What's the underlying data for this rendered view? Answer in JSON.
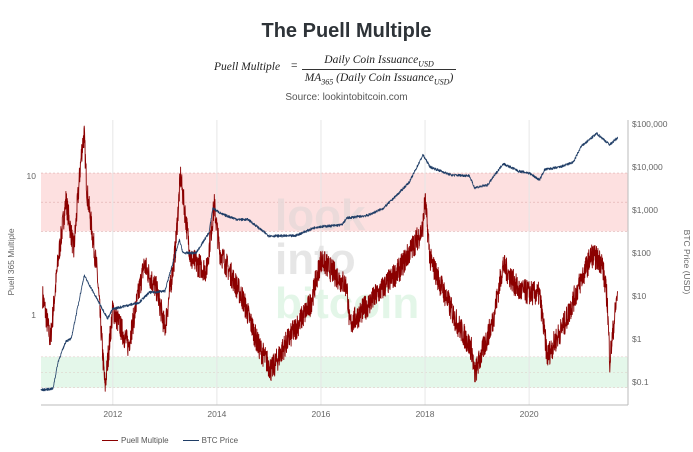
{
  "title": "The Puell Multiple",
  "formula": {
    "lhs": "Puell Multiple",
    "eq": "=",
    "numerator": "Daily Coin Issuance",
    "numerator_sub": "USD",
    "denominator_prefix": "MA",
    "denominator_prefix_sub": "365",
    "denominator": " (Daily Coin Issuance",
    "denominator_sub": "USD",
    "denominator_close": ")"
  },
  "source": "Source: lookintobitcoin.com",
  "watermark": [
    "look",
    "into",
    "bitcoin"
  ],
  "chart_data": {
    "type": "line",
    "title": "The Puell Multiple",
    "xlabel": "",
    "ylabel_left": "Puell 365 Multiple",
    "ylabel_right": "BTC Price (USD)",
    "xlim": [
      2010.62,
      2021.75
    ],
    "ylim_left": [
      0.22,
      26
    ],
    "ylim_right": [
      0.045,
      130000
    ],
    "x_ticks": [
      "2012",
      "2014",
      "2016",
      "2018",
      "2020"
    ],
    "x_tick_values": [
      2012,
      2014,
      2016,
      2018,
      2020
    ],
    "left_ticks": [
      "10",
      "1"
    ],
    "left_tick_values": [
      10,
      1
    ],
    "right_ticks": [
      "$100,000",
      "$10,000",
      "$1,000",
      "$100",
      "$10",
      "$1",
      "$0.1"
    ],
    "right_tick_values": [
      100000,
      10000,
      1000,
      100,
      10,
      1,
      0.1
    ],
    "bands": [
      {
        "name": "overvalued-zone",
        "from": 4,
        "to": 10.5,
        "color": "#fde0e0"
      },
      {
        "name": "undervalued-zone",
        "from": 0.3,
        "to": 0.5,
        "color": "#e4f7ea"
      }
    ],
    "grid": true,
    "legend_position": "bottom-left",
    "series": [
      {
        "name": "Puell Multiple",
        "axis": "left",
        "color": "#8b0000",
        "points": [
          [
            2010.65,
            1.37
          ],
          [
            2010.8,
            0.66
          ],
          [
            2010.95,
            2.5
          ],
          [
            2011.1,
            6.7
          ],
          [
            2011.25,
            2.9
          ],
          [
            2011.4,
            15
          ],
          [
            2011.45,
            20
          ],
          [
            2011.5,
            8
          ],
          [
            2011.7,
            2
          ],
          [
            2011.85,
            0.3
          ],
          [
            2012.0,
            1.1
          ],
          [
            2012.3,
            0.6
          ],
          [
            2012.6,
            2.3
          ],
          [
            2012.85,
            1.5
          ],
          [
            2013.0,
            0.8
          ],
          [
            2013.2,
            2.9
          ],
          [
            2013.3,
            10
          ],
          [
            2013.5,
            2.5
          ],
          [
            2013.8,
            2.1
          ],
          [
            2013.95,
            6.2
          ],
          [
            2014.05,
            2.9
          ],
          [
            2014.5,
            1.3
          ],
          [
            2014.8,
            0.6
          ],
          [
            2015.05,
            0.4
          ],
          [
            2015.3,
            0.6
          ],
          [
            2015.8,
            1.2
          ],
          [
            2016.0,
            2.5
          ],
          [
            2016.5,
            1.6
          ],
          [
            2016.55,
            0.85
          ],
          [
            2017.0,
            1.3
          ],
          [
            2017.5,
            2.1
          ],
          [
            2017.95,
            4.1
          ],
          [
            2018.0,
            6.7
          ],
          [
            2018.1,
            2.5
          ],
          [
            2018.6,
            0.9
          ],
          [
            2018.9,
            0.56
          ],
          [
            2018.95,
            0.37
          ],
          [
            2019.3,
            0.9
          ],
          [
            2019.5,
            2.3
          ],
          [
            2019.8,
            1.5
          ],
          [
            2020.2,
            1.4
          ],
          [
            2020.35,
            0.5
          ],
          [
            2020.5,
            0.65
          ],
          [
            2020.7,
            0.9
          ],
          [
            2021.0,
            1.8
          ],
          [
            2021.2,
            2.7
          ],
          [
            2021.4,
            2.4
          ],
          [
            2021.5,
            1.3
          ],
          [
            2021.55,
            0.47
          ],
          [
            2021.7,
            1.5
          ]
        ]
      },
      {
        "name": "BTC Price",
        "axis": "right",
        "color": "#1f3d66",
        "points": [
          [
            2010.62,
            0.065
          ],
          [
            2010.85,
            0.07
          ],
          [
            2010.95,
            0.3
          ],
          [
            2011.1,
            0.9
          ],
          [
            2011.2,
            1
          ],
          [
            2011.45,
            30
          ],
          [
            2011.6,
            14
          ],
          [
            2011.9,
            3
          ],
          [
            2012.0,
            5
          ],
          [
            2012.5,
            7
          ],
          [
            2012.7,
            12
          ],
          [
            2013.0,
            13
          ],
          [
            2013.28,
            200
          ],
          [
            2013.35,
            100
          ],
          [
            2013.6,
            100
          ],
          [
            2013.85,
            300
          ],
          [
            2013.92,
            1100
          ],
          [
            2014.1,
            800
          ],
          [
            2014.4,
            600
          ],
          [
            2014.6,
            600
          ],
          [
            2015.0,
            250
          ],
          [
            2015.5,
            250
          ],
          [
            2015.9,
            400
          ],
          [
            2016.4,
            450
          ],
          [
            2016.5,
            650
          ],
          [
            2016.9,
            750
          ],
          [
            2017.2,
            1100
          ],
          [
            2017.5,
            2500
          ],
          [
            2017.7,
            4500
          ],
          [
            2017.96,
            19000
          ],
          [
            2018.1,
            10000
          ],
          [
            2018.5,
            6500
          ],
          [
            2018.85,
            6300
          ],
          [
            2018.95,
            3300
          ],
          [
            2019.2,
            3800
          ],
          [
            2019.5,
            12000
          ],
          [
            2019.8,
            8000
          ],
          [
            2020.0,
            7200
          ],
          [
            2020.2,
            5000
          ],
          [
            2020.3,
            8700
          ],
          [
            2020.6,
            10000
          ],
          [
            2020.85,
            13000
          ],
          [
            2021.0,
            30000
          ],
          [
            2021.3,
            60000
          ],
          [
            2021.55,
            33000
          ],
          [
            2021.7,
            48000
          ]
        ]
      }
    ]
  }
}
